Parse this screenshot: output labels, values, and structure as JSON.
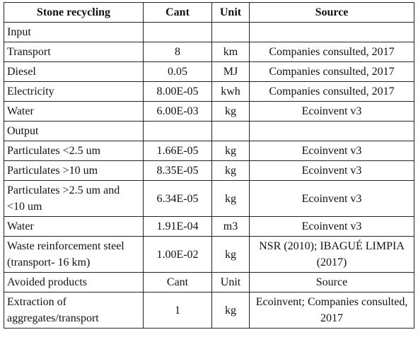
{
  "table": {
    "headers": [
      "Stone recycling",
      "Cant",
      "Unit",
      "Source"
    ],
    "rows": [
      {
        "item": "Input",
        "cant": "",
        "unit": "",
        "source": ""
      },
      {
        "item": "Transport",
        "cant": "8",
        "unit": "km",
        "source": "Companies consulted, 2017"
      },
      {
        "item": "Diesel",
        "cant": "0.05",
        "unit": "MJ",
        "source": "Companies consulted, 2017"
      },
      {
        "item": "Electricity",
        "cant": "8.00E-05",
        "unit": "kwh",
        "source": "Companies consulted, 2017"
      },
      {
        "item": "Water",
        "cant": "6.00E-03",
        "unit": "kg",
        "source": "Ecoinvent v3"
      },
      {
        "item": "Output",
        "cant": "",
        "unit": "",
        "source": ""
      },
      {
        "item": "Particulates <2.5 um",
        "cant": "1.66E-05",
        "unit": "kg",
        "source": "Ecoinvent v3"
      },
      {
        "item": "Particulates >10 um",
        "cant": "8.35E-05",
        "unit": "kg",
        "source": "Ecoinvent v3"
      },
      {
        "item": "Particulates >2.5 um and <10 um",
        "cant": "6.34E-05",
        "unit": "kg",
        "source": "Ecoinvent v3"
      },
      {
        "item": "Water",
        "cant": "1.91E-04",
        "unit": "m3",
        "source": "Ecoinvent v3"
      },
      {
        "item": "Waste reinforcement steel (transport- 16 km)",
        "cant": "1.00E-02",
        "unit": "kg",
        "source": "NSR (2010); IBAGUÉ LIMPIA (2017)"
      },
      {
        "item": "Avoided products",
        "cant": "Cant",
        "unit": "Unit",
        "source": "Source"
      },
      {
        "item": "Extraction of aggregates/transport",
        "cant": "1",
        "unit": "kg",
        "source": "Ecoinvent; Companies consulted, 2017"
      }
    ]
  }
}
